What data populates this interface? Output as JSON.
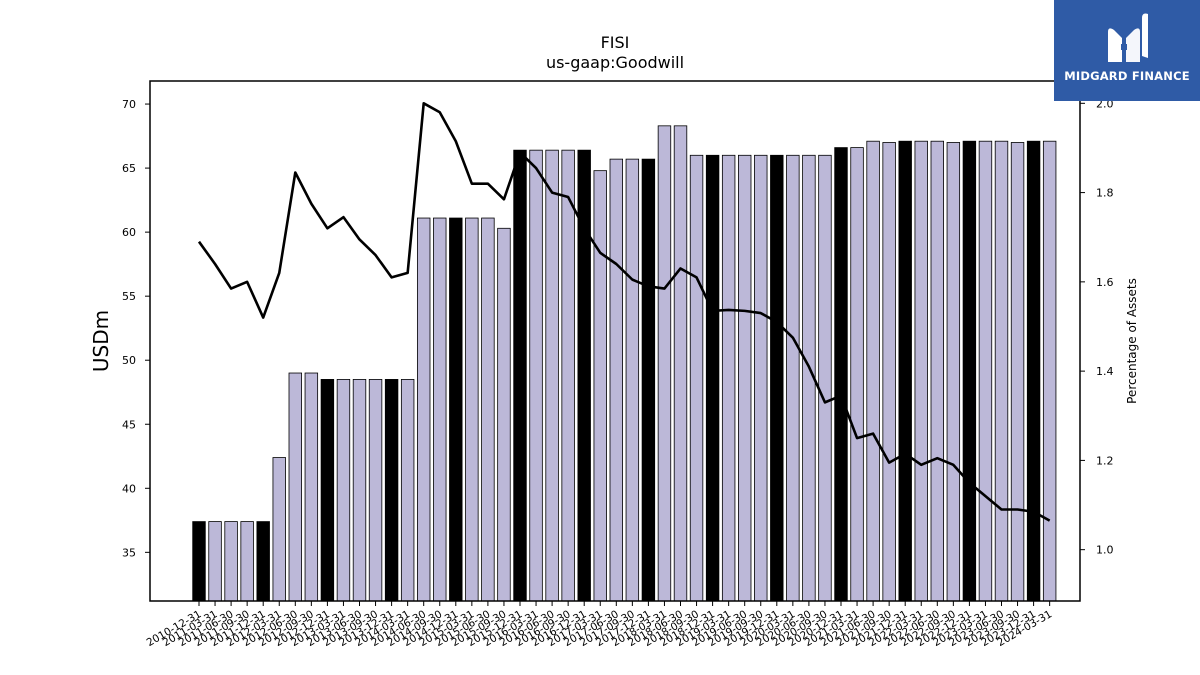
{
  "chart_data": {
    "type": "bar",
    "title": "FISI",
    "subtitle": "us-gaap:Goodwill",
    "ylabel": "USDm",
    "y2label": "Percentage of Assets",
    "ylim": [
      31.2,
      71.8
    ],
    "y2lim": [
      0.885,
      2.05
    ],
    "yticks": [
      35,
      40,
      45,
      50,
      55,
      60,
      65,
      70
    ],
    "y2ticks": [
      1.0,
      1.2,
      1.4,
      1.6,
      1.8,
      2.0
    ],
    "categories": [
      "2010-12-31",
      "2011-03-31",
      "2011-06-30",
      "2011-09-30",
      "2011-12-31",
      "2012-03-31",
      "2012-06-30",
      "2012-09-30",
      "2012-12-31",
      "2013-03-31",
      "2013-06-30",
      "2013-09-30",
      "2013-12-31",
      "2014-03-31",
      "2014-06-30",
      "2014-09-30",
      "2014-12-31",
      "2015-03-31",
      "2015-06-30",
      "2015-09-30",
      "2015-12-31",
      "2016-03-31",
      "2016-06-30",
      "2016-09-30",
      "2016-12-31",
      "2017-03-31",
      "2017-06-30",
      "2017-09-30",
      "2017-12-31",
      "2018-03-31",
      "2018-06-30",
      "2018-09-30",
      "2018-12-31",
      "2019-03-31",
      "2019-06-30",
      "2019-09-30",
      "2019-12-31",
      "2020-03-31",
      "2020-06-30",
      "2020-09-30",
      "2020-12-31",
      "2021-03-31",
      "2021-06-30",
      "2021-09-30",
      "2021-12-31",
      "2022-03-31",
      "2022-06-30",
      "2022-09-30",
      "2022-12-31",
      "2023-03-31",
      "2023-06-30",
      "2023-09-30",
      "2023-12-31",
      "2024-03-31"
    ],
    "series": [
      {
        "type": "bar",
        "axis": "left",
        "values": [
          37.4,
          37.4,
          37.4,
          37.4,
          37.4,
          42.4,
          49.0,
          49.0,
          48.5,
          48.5,
          48.5,
          48.5,
          48.5,
          48.5,
          61.1,
          61.1,
          61.1,
          61.1,
          61.1,
          60.3,
          66.4,
          66.4,
          66.4,
          66.4,
          66.4,
          64.8,
          65.7,
          65.7,
          65.7,
          68.3,
          68.3,
          66.0,
          66.0,
          66.0,
          66.0,
          66.0,
          66.0,
          66.0,
          66.0,
          66.0,
          66.6,
          66.6,
          67.1,
          67.0,
          67.1,
          67.1,
          67.1,
          67.0,
          67.1,
          67.1,
          67.1,
          67.0,
          67.1,
          67.1
        ]
      },
      {
        "type": "line",
        "axis": "right",
        "values": [
          1.69,
          1.64,
          1.585,
          1.6,
          1.52,
          1.62,
          1.845,
          1.775,
          1.72,
          1.745,
          1.695,
          1.66,
          1.61,
          1.62,
          2.0,
          1.98,
          1.915,
          1.82,
          1.82,
          1.785,
          1.89,
          1.855,
          1.8,
          1.79,
          1.72,
          1.665,
          1.64,
          1.605,
          1.59,
          1.585,
          1.63,
          1.61,
          1.535,
          1.537,
          1.535,
          1.53,
          1.51,
          1.475,
          1.41,
          1.33,
          1.345,
          1.25,
          1.26,
          1.195,
          1.215,
          1.19,
          1.205,
          1.19,
          1.15,
          1.12,
          1.09,
          1.09,
          1.085,
          1.065
        ]
      }
    ],
    "highlight_color": "#000000",
    "bar_color": "#bcb8d8",
    "line_color": "#000000"
  },
  "logo": {
    "text": "MIDGARD FINANCE",
    "color": "#2f5ba6"
  }
}
